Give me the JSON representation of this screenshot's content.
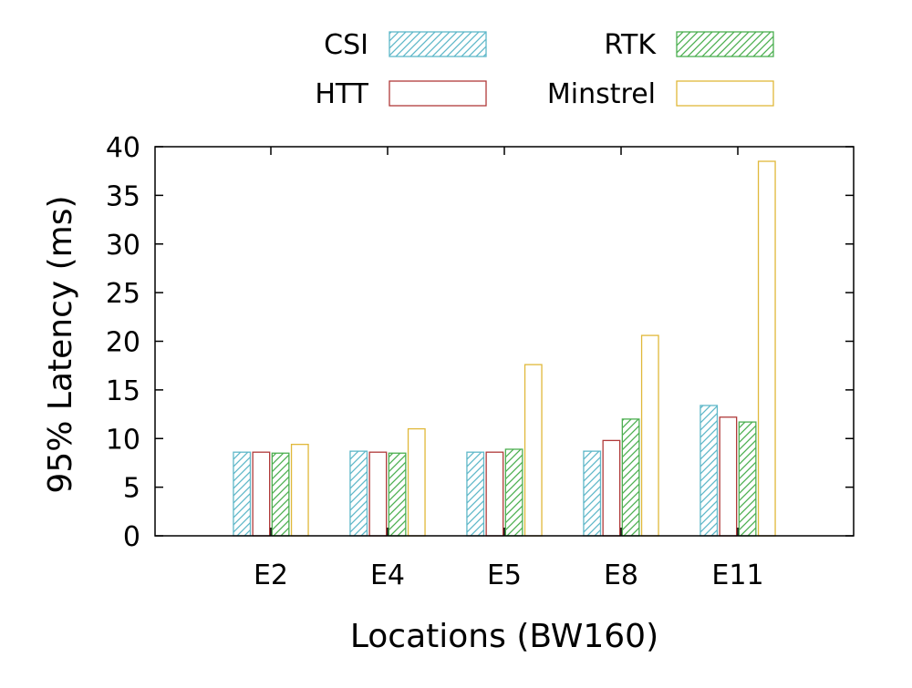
{
  "chart_data": {
    "type": "bar",
    "title": "",
    "xlabel": "Locations (BW160)",
    "ylabel": "95% Latency (ms)",
    "categories": [
      "E2",
      "E4",
      "E5",
      "E8",
      "E11"
    ],
    "ylim": [
      0,
      40
    ],
    "yticks": [
      0,
      5,
      10,
      15,
      20,
      25,
      30,
      35,
      40
    ],
    "legend_position": "top",
    "series": [
      {
        "name": "CSI",
        "color": "#5fb8c9",
        "pattern": "hatched",
        "values": [
          8.6,
          8.7,
          8.6,
          8.7,
          13.4
        ]
      },
      {
        "name": "HTT",
        "color": "#b03a3a",
        "pattern": "empty",
        "values": [
          8.6,
          8.6,
          8.6,
          9.8,
          12.2
        ]
      },
      {
        "name": "RTK",
        "color": "#4caf50",
        "pattern": "hatched",
        "values": [
          8.5,
          8.5,
          8.9,
          12.0,
          11.7
        ]
      },
      {
        "name": "Minstrel",
        "color": "#e0b83a",
        "pattern": "empty",
        "values": [
          9.4,
          11.0,
          17.6,
          20.6,
          38.5
        ]
      }
    ]
  }
}
